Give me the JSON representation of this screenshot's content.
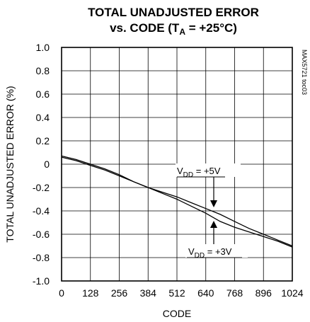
{
  "chart_data": {
    "type": "line",
    "title_line1": "TOTAL UNADJUSTED ERROR",
    "title_line2_prefix": "vs. CODE (T",
    "title_line2_sub": "A",
    "title_line2_suffix": " = +25°C)",
    "xlabel": "CODE",
    "ylabel": "TOTAL UNADJUSTED ERROR (%)",
    "side_label": "MAX5721 toc03",
    "xlim": [
      0,
      1024
    ],
    "ylim": [
      -1.0,
      1.0
    ],
    "xticks": [
      0,
      128,
      256,
      384,
      512,
      640,
      768,
      896,
      1024
    ],
    "xtick_labels": [
      "0",
      "128",
      "256",
      "384",
      "512",
      "640",
      "768",
      "896",
      "1024"
    ],
    "yticks": [
      1.0,
      0.8,
      0.6,
      0.4,
      0.2,
      0,
      -0.2,
      -0.4,
      -0.6,
      -0.8,
      -1.0
    ],
    "ytick_labels": [
      "1.0",
      "0.8",
      "0.6",
      "0.4",
      "0.2",
      "0",
      "-0.2",
      "-0.4",
      "-0.6",
      "-0.8",
      "-1.0"
    ],
    "grid": true,
    "series": [
      {
        "name": "VDD = +5V",
        "label_main": "V",
        "label_sub": "DD",
        "label_rest": " = +5V",
        "x": [
          0,
          64,
          128,
          192,
          256,
          320,
          384,
          448,
          512,
          576,
          640,
          704,
          768,
          832,
          896,
          960,
          1024
        ],
        "values": [
          0.07,
          0.04,
          0.0,
          -0.04,
          -0.09,
          -0.15,
          -0.2,
          -0.24,
          -0.28,
          -0.33,
          -0.38,
          -0.43,
          -0.49,
          -0.55,
          -0.6,
          -0.65,
          -0.7
        ]
      },
      {
        "name": "VDD = +3V",
        "label_main": "V",
        "label_sub": "DD",
        "label_rest": " = +3V",
        "x": [
          0,
          64,
          128,
          192,
          256,
          320,
          384,
          448,
          512,
          576,
          640,
          704,
          768,
          832,
          896,
          960,
          1024
        ],
        "values": [
          0.06,
          0.03,
          -0.01,
          -0.05,
          -0.1,
          -0.15,
          -0.2,
          -0.25,
          -0.3,
          -0.36,
          -0.42,
          -0.49,
          -0.54,
          -0.58,
          -0.62,
          -0.66,
          -0.71
        ]
      }
    ]
  }
}
